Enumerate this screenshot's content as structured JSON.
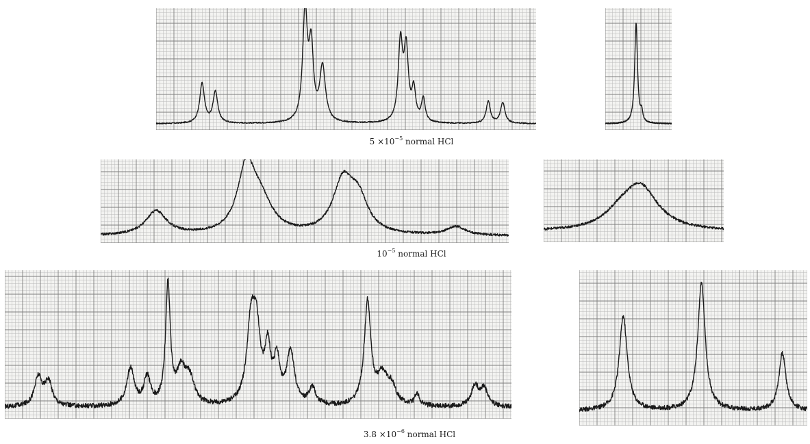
{
  "figure": {
    "ink_color": "#1a1a1a",
    "grid_minor_color": "#b9b9b9",
    "grid_major_color": "#7d7d7d",
    "paper_color": "#f3f3f1"
  },
  "chart_data": [
    {
      "type": "line",
      "group": "row-1",
      "xlim": [
        0,
        100
      ],
      "ylim": [
        0,
        100
      ],
      "baseline": 3,
      "noise": 0.5,
      "peaks": [
        {
          "x": 12.1,
          "h": 34,
          "w": 0.75
        },
        {
          "x": 15.6,
          "h": 27,
          "w": 0.75
        },
        {
          "x": 39.2,
          "h": 94,
          "w": 0.75
        },
        {
          "x": 40.8,
          "h": 60,
          "w": 0.7
        },
        {
          "x": 43.8,
          "h": 47,
          "w": 0.9
        },
        {
          "x": 64.3,
          "h": 67,
          "w": 0.7
        },
        {
          "x": 65.8,
          "h": 60,
          "w": 0.7
        },
        {
          "x": 67.8,
          "h": 26,
          "w": 0.6
        },
        {
          "x": 70.3,
          "h": 20,
          "w": 0.6
        },
        {
          "x": 87.4,
          "h": 19,
          "w": 0.65
        },
        {
          "x": 91.2,
          "h": 18,
          "w": 0.7
        }
      ]
    },
    {
      "type": "line",
      "group": "row-1",
      "xlim": [
        0,
        100
      ],
      "ylim": [
        0,
        100
      ],
      "baseline": 3,
      "noise": 0.5,
      "peaks": [
        {
          "x": 46.4,
          "h": 86,
          "w": 2.6
        },
        {
          "x": 54.7,
          "h": 8,
          "w": 1.8
        }
      ]
    },
    {
      "type": "line",
      "group": "row-2",
      "xlim": [
        0,
        100
      ],
      "ylim": [
        0,
        100
      ],
      "baseline": 5,
      "noise": 1.4,
      "peaks": [
        {
          "x": 13.6,
          "h": 31,
          "w": 3.1
        },
        {
          "x": 35.7,
          "h": 81,
          "w": 2.6
        },
        {
          "x": 39.2,
          "h": 38,
          "w": 3.5
        },
        {
          "x": 59.4,
          "h": 66,
          "w": 3.0
        },
        {
          "x": 63.2,
          "h": 40,
          "w": 2.8
        },
        {
          "x": 87.1,
          "h": 11,
          "w": 2.8
        }
      ]
    },
    {
      "type": "line",
      "group": "row-2",
      "xlim": [
        0,
        100
      ],
      "ylim": [
        0,
        100
      ],
      "baseline": 10,
      "noise": 1.6,
      "peaks": [
        {
          "x": 53.6,
          "h": 57,
          "w": 12.0
        },
        {
          "x": 42.0,
          "h": 14,
          "w": 10.0
        }
      ]
    },
    {
      "type": "line",
      "group": "row-3",
      "xlim": [
        0,
        100
      ],
      "ylim": [
        0,
        100
      ],
      "baseline": 6,
      "noise": 1.7,
      "peaks": [
        {
          "x": 6.6,
          "h": 20,
          "w": 0.9
        },
        {
          "x": 8.6,
          "h": 17,
          "w": 0.9
        },
        {
          "x": 24.8,
          "h": 26,
          "w": 0.9
        },
        {
          "x": 28.1,
          "h": 19,
          "w": 0.8
        },
        {
          "x": 32.2,
          "h": 84,
          "w": 0.55
        },
        {
          "x": 34.8,
          "h": 23,
          "w": 1.1
        },
        {
          "x": 36.5,
          "h": 17,
          "w": 1.1
        },
        {
          "x": 48.6,
          "h": 54,
          "w": 1.0
        },
        {
          "x": 49.7,
          "h": 43,
          "w": 0.9
        },
        {
          "x": 51.9,
          "h": 36,
          "w": 0.7
        },
        {
          "x": 53.7,
          "h": 29,
          "w": 0.7
        },
        {
          "x": 56.4,
          "h": 37,
          "w": 0.9
        },
        {
          "x": 60.7,
          "h": 12,
          "w": 0.8
        },
        {
          "x": 71.6,
          "h": 72,
          "w": 0.8
        },
        {
          "x": 74.5,
          "h": 19,
          "w": 1.2
        },
        {
          "x": 76.3,
          "h": 12,
          "w": 1.1
        },
        {
          "x": 81.4,
          "h": 8,
          "w": 0.6
        },
        {
          "x": 92.8,
          "h": 14,
          "w": 0.9
        },
        {
          "x": 94.6,
          "h": 12,
          "w": 0.9
        }
      ]
    },
    {
      "type": "line",
      "group": "row-3",
      "xlim": [
        0,
        100
      ],
      "ylim": [
        0,
        100
      ],
      "baseline": 8,
      "noise": 1.5,
      "peaks": [
        {
          "x": 19.3,
          "h": 63,
          "w": 2.1
        },
        {
          "x": 53.6,
          "h": 85,
          "w": 2.0
        },
        {
          "x": 89.1,
          "h": 38,
          "w": 1.9
        }
      ]
    }
  ],
  "captions": {
    "row1": {
      "prefix": "5 ×10",
      "exp": "−5",
      "suffix": " normal HCl"
    },
    "row2": {
      "prefix": "10",
      "exp": "−5",
      "suffix": " normal HCl"
    },
    "row3": {
      "prefix": "3.8 ×10",
      "exp": "−6",
      "suffix": " normal HCl"
    }
  }
}
